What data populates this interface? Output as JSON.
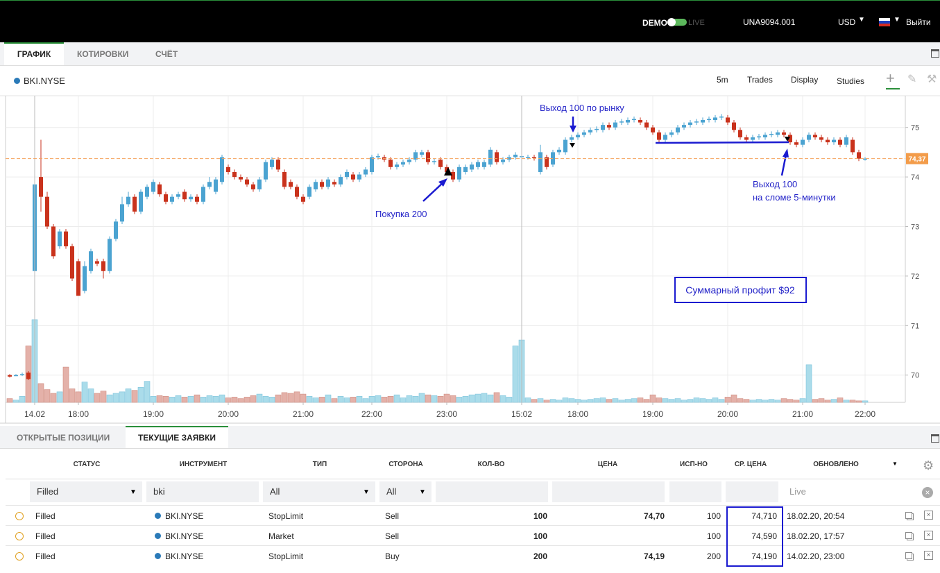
{
  "topbar": {
    "mode_demo": "DEMO",
    "mode_live": "LIVE",
    "account": "UNA9094.001",
    "currency": "USD",
    "logout": "Выйти"
  },
  "tabs": [
    "ГРАФИК",
    "КОТИРОВКИ",
    "СЧЁТ"
  ],
  "symbol": "BKI.NYSE",
  "toolbar": [
    "5m",
    "Trades",
    "Display",
    "Studies"
  ],
  "chart_data": {
    "type": "candlestick",
    "categories": [
      null,
      null,
      null,
      null,
      "14.02",
      null,
      null,
      null,
      null,
      null,
      null,
      "18:00",
      null,
      null,
      null,
      null,
      null,
      null,
      null,
      null,
      null,
      null,
      null,
      "19:00",
      null,
      null,
      null,
      null,
      null,
      null,
      null,
      null,
      null,
      null,
      null,
      "20:00",
      null,
      null,
      null,
      null,
      null,
      null,
      null,
      null,
      null,
      null,
      null,
      "21:00",
      null,
      null,
      null,
      null,
      null,
      null,
      null,
      null,
      null,
      null,
      "22:00",
      null,
      null,
      null,
      null,
      null,
      null,
      null,
      null,
      null,
      null,
      null,
      "23:00",
      null,
      null,
      null,
      null,
      null,
      null,
      null,
      null,
      null,
      null,
      null,
      "15:02",
      null,
      null,
      null,
      null,
      null,
      null,
      null,
      null,
      "18:00",
      null,
      null,
      null,
      null,
      null,
      null,
      null,
      null,
      null,
      null,
      null,
      "19:00",
      null,
      null,
      null,
      null,
      null,
      null,
      null,
      null,
      null,
      null,
      null,
      "20:00",
      null,
      null,
      null,
      null,
      null,
      null,
      null,
      null,
      null,
      null,
      null,
      "21:00",
      null,
      null,
      null,
      null,
      null,
      null,
      null,
      null,
      null,
      "22:00"
    ],
    "open": [
      70.0,
      70.0,
      70.0,
      70.05,
      72.1,
      74.0,
      73.6,
      73.0,
      72.6,
      72.9,
      72.6,
      72.3,
      71.7,
      72.1,
      72.3,
      72.3,
      72.1,
      72.75,
      73.1,
      73.45,
      73.6,
      73.3,
      73.6,
      73.7,
      73.85,
      73.65,
      73.5,
      73.6,
      73.7,
      73.55,
      73.6,
      73.5,
      73.8,
      73.7,
      73.9,
      74.2,
      74.1,
      74.0,
      73.95,
      73.85,
      73.75,
      73.95,
      74.2,
      74.35,
      74.1,
      73.9,
      73.8,
      73.6,
      73.6,
      73.75,
      73.9,
      73.8,
      73.9,
      73.85,
      74.0,
      74.05,
      73.95,
      74.05,
      74.1,
      74.4,
      74.4,
      74.35,
      74.2,
      74.25,
      74.3,
      74.35,
      74.45,
      74.5,
      74.3,
      74.35,
      74.2,
      74.1,
      73.95,
      74.1,
      74.15,
      74.2,
      74.2,
      74.25,
      74.5,
      74.3,
      74.35,
      74.4,
      74.4,
      74.4,
      74.4,
      74.1,
      74.4,
      74.25,
      74.5,
      74.5,
      74.75,
      74.8,
      74.85,
      74.9,
      74.95,
      74.95,
      75.05,
      75.0,
      75.1,
      75.1,
      75.15,
      75.15,
      75.1,
      75.0,
      74.9,
      74.75,
      74.85,
      74.9,
      75.0,
      75.05,
      75.1,
      75.1,
      75.15,
      75.15,
      75.2,
      75.2,
      75.1,
      74.95,
      74.8,
      74.75,
      74.8,
      74.8,
      74.85,
      74.85,
      74.9,
      74.85,
      74.7,
      74.65,
      74.75,
      74.85,
      74.8,
      74.75,
      74.7,
      74.75,
      74.65,
      74.75,
      74.5,
      74.37
    ],
    "high": [
      70.02,
      70.02,
      70.05,
      70.08,
      73.9,
      74.75,
      73.7,
      73.05,
      72.95,
      72.95,
      72.65,
      72.35,
      72.3,
      72.55,
      72.35,
      72.35,
      72.8,
      73.15,
      73.6,
      73.7,
      73.65,
      73.75,
      73.85,
      73.95,
      73.9,
      73.7,
      73.65,
      73.7,
      73.75,
      73.65,
      73.65,
      73.85,
      74.0,
      74.0,
      74.45,
      74.25,
      74.15,
      74.05,
      74.0,
      73.9,
      74.0,
      74.35,
      74.4,
      74.4,
      74.15,
      73.95,
      73.85,
      73.65,
      73.85,
      73.95,
      73.95,
      74.0,
      73.95,
      74.05,
      74.15,
      74.1,
      74.1,
      74.2,
      74.45,
      74.47,
      74.45,
      74.4,
      74.3,
      74.35,
      74.4,
      74.55,
      74.55,
      74.55,
      74.37,
      74.4,
      74.25,
      74.15,
      74.25,
      74.25,
      74.3,
      74.35,
      74.35,
      74.6,
      74.55,
      74.4,
      74.45,
      74.5,
      74.47,
      74.45,
      74.45,
      74.65,
      74.45,
      74.55,
      74.6,
      74.8,
      74.85,
      74.9,
      74.95,
      75.0,
      75.02,
      75.1,
      75.1,
      75.15,
      75.17,
      75.2,
      75.22,
      75.2,
      75.15,
      75.05,
      74.95,
      74.9,
      74.95,
      75.05,
      75.1,
      75.15,
      75.17,
      75.2,
      75.22,
      75.25,
      75.27,
      75.25,
      75.15,
      75.0,
      74.85,
      74.85,
      74.87,
      74.9,
      74.92,
      74.95,
      74.95,
      74.9,
      74.75,
      74.8,
      74.9,
      74.9,
      74.85,
      74.8,
      74.8,
      74.8,
      74.85,
      74.8,
      74.55,
      74.4
    ],
    "low": [
      69.95,
      69.98,
      69.98,
      69.9,
      71.55,
      73.3,
      72.95,
      72.35,
      72.55,
      72.55,
      71.9,
      71.6,
      71.65,
      72.05,
      72.2,
      71.95,
      72.05,
      72.7,
      73.05,
      73.4,
      73.25,
      73.25,
      73.55,
      73.65,
      73.6,
      73.45,
      73.45,
      73.55,
      73.5,
      73.5,
      73.45,
      73.45,
      73.75,
      73.65,
      73.85,
      74.05,
      73.95,
      73.9,
      73.8,
      73.7,
      73.7,
      73.9,
      74.15,
      74.1,
      73.75,
      73.75,
      73.55,
      73.45,
      73.55,
      73.7,
      73.75,
      73.75,
      73.8,
      73.8,
      73.95,
      73.9,
      73.9,
      74.0,
      74.05,
      74.35,
      74.3,
      74.15,
      74.15,
      74.2,
      74.25,
      74.3,
      74.4,
      74.25,
      74.25,
      74.15,
      74.05,
      73.9,
      73.9,
      74.05,
      74.1,
      74.15,
      74.15,
      74.2,
      74.25,
      74.25,
      74.3,
      74.35,
      74.35,
      74.35,
      74.33,
      74.05,
      74.15,
      74.2,
      74.45,
      74.45,
      74.7,
      74.75,
      74.8,
      74.85,
      74.9,
      74.9,
      74.95,
      74.95,
      75.05,
      75.05,
      75.1,
      75.05,
      74.95,
      74.85,
      74.7,
      74.7,
      74.8,
      74.85,
      74.95,
      75.0,
      75.05,
      75.05,
      75.1,
      75.1,
      75.15,
      75.05,
      74.9,
      74.75,
      74.7,
      74.7,
      74.75,
      74.75,
      74.8,
      74.8,
      74.8,
      74.65,
      74.6,
      74.6,
      74.7,
      74.75,
      74.7,
      74.65,
      74.65,
      74.6,
      74.6,
      74.45,
      74.32,
      74.33
    ],
    "close": [
      69.97,
      70.0,
      70.02,
      69.92,
      73.85,
      73.6,
      73.0,
      72.4,
      72.9,
      72.6,
      71.95,
      71.6,
      72.2,
      72.5,
      72.25,
      72.1,
      72.75,
      73.1,
      73.45,
      73.6,
      73.3,
      73.7,
      73.8,
      73.9,
      73.65,
      73.5,
      73.6,
      73.65,
      73.55,
      73.6,
      73.5,
      73.8,
      73.9,
      73.95,
      74.4,
      74.1,
      74.0,
      73.95,
      73.85,
      73.75,
      73.95,
      74.3,
      74.35,
      74.15,
      73.8,
      73.8,
      73.6,
      73.5,
      73.8,
      73.9,
      73.8,
      73.95,
      73.85,
      74.0,
      74.1,
      73.95,
      74.05,
      74.15,
      74.4,
      74.42,
      74.35,
      74.2,
      74.25,
      74.3,
      74.35,
      74.5,
      74.5,
      74.3,
      74.32,
      74.2,
      74.1,
      73.95,
      74.2,
      74.2,
      74.25,
      74.3,
      74.3,
      74.55,
      74.3,
      74.35,
      74.4,
      74.45,
      74.42,
      74.4,
      74.38,
      74.5,
      74.2,
      74.5,
      74.55,
      74.75,
      74.8,
      74.85,
      74.9,
      74.95,
      74.97,
      75.05,
      75.0,
      75.1,
      75.12,
      75.15,
      75.17,
      75.1,
      75.0,
      74.9,
      74.75,
      74.85,
      74.9,
      75.0,
      75.05,
      75.1,
      75.12,
      75.15,
      75.17,
      75.2,
      75.22,
      75.1,
      74.95,
      74.8,
      74.75,
      74.8,
      74.82,
      74.85,
      74.87,
      74.9,
      74.85,
      74.7,
      74.65,
      74.75,
      74.85,
      74.8,
      74.75,
      74.7,
      74.75,
      74.65,
      74.8,
      74.5,
      74.37,
      74.37
    ],
    "volume": [
      5,
      3,
      8,
      75,
      110,
      25,
      17,
      12,
      14,
      47,
      18,
      14,
      27,
      18,
      12,
      15,
      10,
      12,
      14,
      18,
      16,
      20,
      28,
      8,
      9,
      8,
      7,
      9,
      7,
      8,
      10,
      7,
      9,
      8,
      10,
      6,
      7,
      5,
      7,
      9,
      11,
      8,
      7,
      10,
      13,
      12,
      14,
      11,
      8,
      6,
      7,
      10,
      5,
      8,
      6,
      7,
      8,
      5,
      8,
      9,
      7,
      8,
      10,
      6,
      9,
      8,
      12,
      10,
      9,
      8,
      11,
      9,
      7,
      8,
      10,
      11,
      12,
      10,
      13,
      9,
      7,
      75,
      83,
      6,
      4,
      5,
      3,
      4,
      3,
      6,
      5,
      4,
      3,
      4,
      5,
      6,
      4,
      5,
      3,
      4,
      5,
      6,
      4,
      10,
      6,
      5,
      4,
      5,
      3,
      4,
      6,
      5,
      4,
      6,
      4,
      7,
      10,
      5,
      4,
      3,
      4,
      3,
      4,
      3,
      5,
      4,
      3,
      5,
      50,
      4,
      5,
      3,
      4,
      6,
      3,
      3,
      2,
      2
    ],
    "ylim": [
      69.45,
      75.64
    ],
    "yticks": [
      70,
      71,
      72,
      73,
      74,
      75
    ],
    "volume_ylim": [
      0,
      120
    ],
    "up_color": "#4ba3d1",
    "down_color": "#c9321c",
    "grid": true,
    "last_price": {
      "value": 74.37,
      "label": "74,37"
    },
    "annotations": [
      "Выход 100 по рынку",
      "Покупка 200",
      "Выход 100",
      "на сломе 5-минутки",
      "Суммарный профит $92"
    ]
  },
  "bottom_tabs": [
    "ОТКРЫТЫЕ ПОЗИЦИИ",
    "ТЕКУЩИЕ ЗАЯВКИ"
  ],
  "orders": {
    "columns": [
      "СТАТУС",
      "ИНСТРУМЕНТ",
      "ТИП",
      "СТОРОНА",
      "КОЛ-ВО",
      "ЦЕНА",
      "ИСП-НО",
      "СР. ЦЕНА",
      "ОБНОВЛЕНО"
    ],
    "filters": [
      "Filled",
      "bki",
      "All",
      "All",
      "Live"
    ],
    "rows": [
      [
        "Filled",
        "BKI.NYSE",
        "StopLimit",
        "Sell",
        100,
        "74,70",
        100,
        "74,710",
        "18.02.20, 20:54"
      ],
      [
        "Filled",
        "BKI.NYSE",
        "Market",
        "Sell",
        100,
        null,
        100,
        "74,590",
        "18.02.20, 17:57"
      ],
      [
        "Filled",
        "BKI.NYSE",
        "StopLimit",
        "Buy",
        200,
        "74,19",
        200,
        "74,190",
        "14.02.20, 23:00"
      ]
    ]
  }
}
